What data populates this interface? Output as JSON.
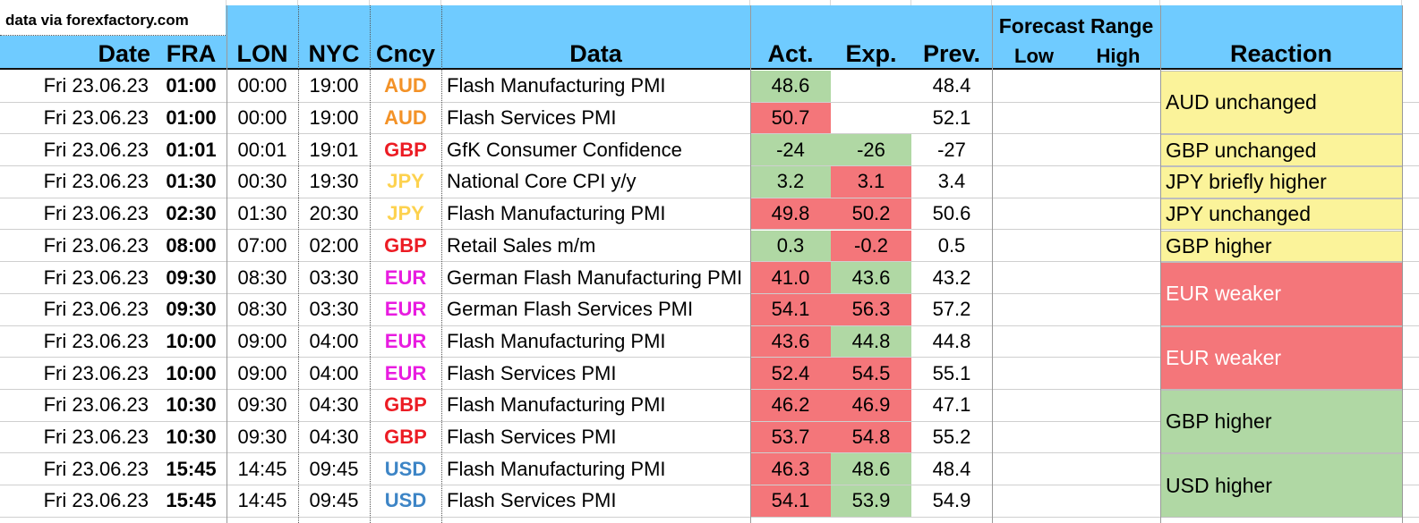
{
  "source_note": "data via forexfactory.com",
  "headers": {
    "date": "Date",
    "fra": "FRA",
    "lon": "LON",
    "nyc": "NYC",
    "cncy": "Cncy",
    "data": "Data",
    "act": "Act.",
    "exp": "Exp.",
    "prev": "Prev.",
    "forecast_range": "Forecast Range",
    "low": "Low",
    "high": "High",
    "reaction": "Reaction"
  },
  "colors": {
    "header_bg": "#6fcbff",
    "green": "#b0d8a4",
    "red": "#f4767a",
    "yellow": "#fbf39a",
    "AUD": "#f39227",
    "GBP": "#ec1c24",
    "JPY": "#fdd24f",
    "EUR": "#e81ce0",
    "USD": "#3d85c6"
  },
  "rows": [
    {
      "date": "Fri 23.06.23",
      "fra": "01:00",
      "lon": "00:00",
      "nyc": "19:00",
      "cncy": "AUD",
      "data": "Flash Manufacturing PMI",
      "act": "48.6",
      "act_color": "green",
      "exp": "",
      "exp_color": "none",
      "prev": "48.4"
    },
    {
      "date": "Fri 23.06.23",
      "fra": "01:00",
      "lon": "00:00",
      "nyc": "19:00",
      "cncy": "AUD",
      "data": "Flash Services PMI",
      "act": "50.7",
      "act_color": "red",
      "exp": "",
      "exp_color": "none",
      "prev": "52.1"
    },
    {
      "date": "Fri 23.06.23",
      "fra": "01:01",
      "lon": "00:01",
      "nyc": "19:01",
      "cncy": "GBP",
      "data": "GfK Consumer Confidence",
      "act": "-24",
      "act_color": "green",
      "exp": "-26",
      "exp_color": "green",
      "prev": "-27"
    },
    {
      "date": "Fri 23.06.23",
      "fra": "01:30",
      "lon": "00:30",
      "nyc": "19:30",
      "cncy": "JPY",
      "data": "National Core CPI y/y",
      "act": "3.2",
      "act_color": "green",
      "exp": "3.1",
      "exp_color": "red",
      "prev": "3.4"
    },
    {
      "date": "Fri 23.06.23",
      "fra": "02:30",
      "lon": "01:30",
      "nyc": "20:30",
      "cncy": "JPY",
      "data": "Flash Manufacturing PMI",
      "act": "49.8",
      "act_color": "red",
      "exp": "50.2",
      "exp_color": "red",
      "prev": "50.6"
    },
    {
      "date": "Fri 23.06.23",
      "fra": "08:00",
      "lon": "07:00",
      "nyc": "02:00",
      "cncy": "GBP",
      "data": "Retail Sales m/m",
      "act": "0.3",
      "act_color": "green",
      "exp": "-0.2",
      "exp_color": "red",
      "prev": "0.5"
    },
    {
      "date": "Fri 23.06.23",
      "fra": "09:30",
      "lon": "08:30",
      "nyc": "03:30",
      "cncy": "EUR",
      "data": "German Flash Manufacturing PMI",
      "act": "41.0",
      "act_color": "red",
      "exp": "43.6",
      "exp_color": "green",
      "prev": "43.2"
    },
    {
      "date": "Fri 23.06.23",
      "fra": "09:30",
      "lon": "08:30",
      "nyc": "03:30",
      "cncy": "EUR",
      "data": "German Flash Services PMI",
      "act": "54.1",
      "act_color": "red",
      "exp": "56.3",
      "exp_color": "red",
      "prev": "57.2"
    },
    {
      "date": "Fri 23.06.23",
      "fra": "10:00",
      "lon": "09:00",
      "nyc": "04:00",
      "cncy": "EUR",
      "data": "Flash Manufacturing PMI",
      "act": "43.6",
      "act_color": "red",
      "exp": "44.8",
      "exp_color": "green",
      "prev": "44.8"
    },
    {
      "date": "Fri 23.06.23",
      "fra": "10:00",
      "lon": "09:00",
      "nyc": "04:00",
      "cncy": "EUR",
      "data": "Flash Services PMI",
      "act": "52.4",
      "act_color": "red",
      "exp": "54.5",
      "exp_color": "red",
      "prev": "55.1"
    },
    {
      "date": "Fri 23.06.23",
      "fra": "10:30",
      "lon": "09:30",
      "nyc": "04:30",
      "cncy": "GBP",
      "data": "Flash Manufacturing PMI",
      "act": "46.2",
      "act_color": "red",
      "exp": "46.9",
      "exp_color": "red",
      "prev": "47.1"
    },
    {
      "date": "Fri 23.06.23",
      "fra": "10:30",
      "lon": "09:30",
      "nyc": "04:30",
      "cncy": "GBP",
      "data": "Flash Services PMI",
      "act": "53.7",
      "act_color": "red",
      "exp": "54.8",
      "exp_color": "red",
      "prev": "55.2"
    },
    {
      "date": "Fri 23.06.23",
      "fra": "15:45",
      "lon": "14:45",
      "nyc": "09:45",
      "cncy": "USD",
      "data": "Flash Manufacturing PMI",
      "act": "46.3",
      "act_color": "red",
      "exp": "48.6",
      "exp_color": "green",
      "prev": "48.4"
    },
    {
      "date": "Fri 23.06.23",
      "fra": "15:45",
      "lon": "14:45",
      "nyc": "09:45",
      "cncy": "USD",
      "data": "Flash Services PMI",
      "act": "54.1",
      "act_color": "red",
      "exp": "53.9",
      "exp_color": "green",
      "prev": "54.9"
    }
  ],
  "reactions": [
    {
      "text": "AUD unchanged",
      "row_start": 0,
      "row_count": 2,
      "color": "yellow"
    },
    {
      "text": "GBP unchanged",
      "row_start": 2,
      "row_count": 1,
      "color": "yellow"
    },
    {
      "text": "JPY briefly higher",
      "row_start": 3,
      "row_count": 1,
      "color": "yellow"
    },
    {
      "text": "JPY unchanged",
      "row_start": 4,
      "row_count": 1,
      "color": "yellow"
    },
    {
      "text": "GBP higher",
      "row_start": 5,
      "row_count": 1,
      "color": "yellow"
    },
    {
      "text": "EUR weaker",
      "row_start": 6,
      "row_count": 2,
      "color": "red"
    },
    {
      "text": "EUR weaker",
      "row_start": 8,
      "row_count": 2,
      "color": "red"
    },
    {
      "text": "GBP higher",
      "row_start": 10,
      "row_count": 2,
      "color": "green"
    },
    {
      "text": "USD higher",
      "row_start": 12,
      "row_count": 2,
      "color": "green"
    }
  ]
}
